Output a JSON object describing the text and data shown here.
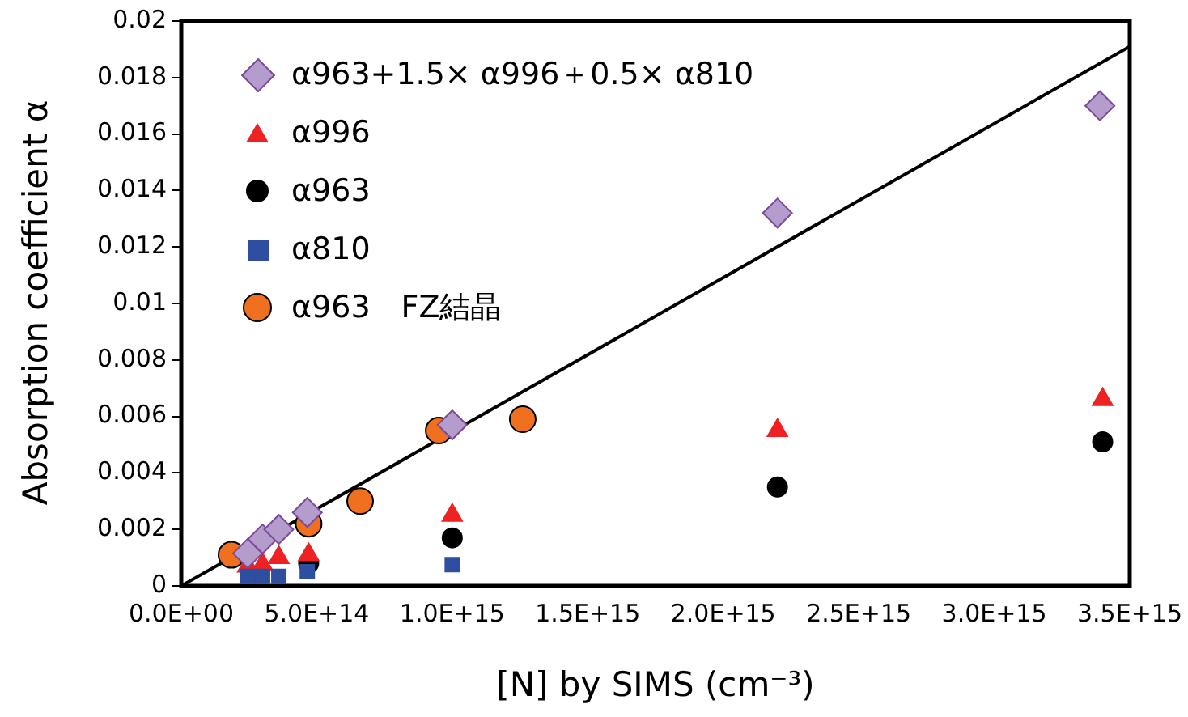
{
  "chart_data": {
    "type": "scatter",
    "xlabel": "[N] by SIMS (cm⁻³)",
    "ylabel": "Absorption coefficient α",
    "xlim": [
      0,
      3500000000000000.0
    ],
    "xticks": [
      {
        "value": 0,
        "label": "0.0E+00"
      },
      {
        "value": 500000000000000.0,
        "label": "5.0E+14"
      },
      {
        "value": 1000000000000000.0,
        "label": "1.0E+15"
      },
      {
        "value": 1500000000000000.0,
        "label": "1.5E+15"
      },
      {
        "value": 2000000000000000.0,
        "label": "2.0E+15"
      },
      {
        "value": 2500000000000000.0,
        "label": "2.5E+15"
      },
      {
        "value": 3000000000000000.0,
        "label": "3.0E+15"
      },
      {
        "value": 3500000000000000.0,
        "label": "3.5E+15"
      }
    ],
    "ylim": [
      0,
      0.02
    ],
    "yticks": [
      0,
      0.002,
      0.004,
      0.006,
      0.008,
      0.01,
      0.012,
      0.014,
      0.016,
      0.018,
      0.02
    ],
    "grid": false,
    "legend": "top left",
    "series": [
      {
        "name": "α963+1.5× α996＋0.5× α810",
        "color": "#b49ccc",
        "marker": "diamond",
        "x": [
          245000000000000.0,
          300000000000000.0,
          360000000000000.0,
          465000000000000.0,
          1000000000000000.0,
          2200000000000000.0,
          3390000000000000.0
        ],
        "values": [
          0.00115,
          0.00166,
          0.002,
          0.0026,
          0.0057,
          0.0132,
          0.017
        ]
      },
      {
        "name": "α996",
        "color": "#ee2222",
        "marker": "triangle",
        "x": [
          245000000000000.0,
          300000000000000.0,
          360000000000000.0,
          470000000000000.0,
          1000000000000000.0,
          2200000000000000.0,
          3400000000000000.0
        ],
        "values": [
          0.0007,
          0.00075,
          0.001,
          0.0011,
          0.0025,
          0.0055,
          0.0066
        ]
      },
      {
        "name": "α963",
        "color": "#000000",
        "marker": "circle",
        "x": [
          470000000000000.0,
          1000000000000000.0,
          2200000000000000.0,
          3400000000000000.0
        ],
        "values": [
          0.0008,
          0.0017,
          0.0035,
          0.0051
        ]
      },
      {
        "name": "α810",
        "color": "#2e4fa0",
        "marker": "square",
        "x": [
          245000000000000.0,
          300000000000000.0,
          360000000000000.0,
          465000000000000.0,
          1000000000000000.0
        ],
        "values": [
          0.00034,
          0.00034,
          0.00034,
          0.0005,
          0.00075
        ]
      },
      {
        "name": "α963　FZ結晶",
        "color": "#f07020",
        "marker": "circle",
        "x": [
          185000000000000.0,
          470000000000000.0,
          660000000000000.0,
          950000000000000.0,
          1260000000000000.0
        ],
        "values": [
          0.0011,
          0.0022,
          0.003,
          0.0055,
          0.0059
        ]
      },
      {
        "type": "line",
        "color": "#000000",
        "marker": "none",
        "x": [
          0,
          3500000000000000.0
        ],
        "values": [
          0,
          0.0191
        ]
      }
    ]
  }
}
